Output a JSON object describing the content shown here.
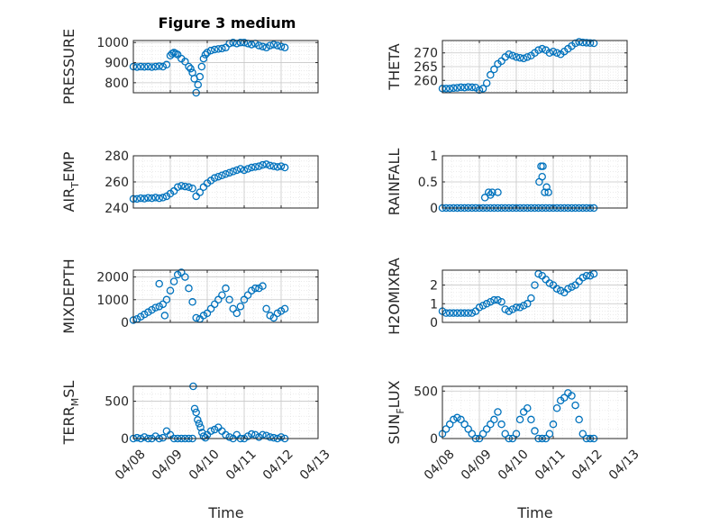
{
  "figure": {
    "title": "Figure 3 medium",
    "xlabel": "Time",
    "x_ticks": [
      "04/08",
      "04/09",
      "04/10",
      "04/11",
      "04/12",
      "04/13"
    ]
  },
  "colors": {
    "marker": "#0072BD",
    "axis": "#262626",
    "grid": "#dfdfdf"
  },
  "chart_data": [
    {
      "type": "scatter",
      "name": "PRESSURE",
      "ylabel_main": "PRESSURE",
      "ylabel_sub": "",
      "xlim": [
        0,
        5
      ],
      "ylim": [
        750,
        1010
      ],
      "yticks": [
        800,
        900,
        1000
      ],
      "grid": true,
      "x": [
        0.0,
        0.1,
        0.2,
        0.3,
        0.4,
        0.5,
        0.6,
        0.7,
        0.8,
        0.9,
        1.0,
        1.05,
        1.1,
        1.15,
        1.2,
        1.3,
        1.4,
        1.5,
        1.55,
        1.6,
        1.65,
        1.7,
        1.75,
        1.8,
        1.85,
        1.9,
        1.95,
        2.0,
        2.1,
        2.2,
        2.3,
        2.4,
        2.5,
        2.6,
        2.7,
        2.8,
        2.9,
        3.0,
        3.1,
        3.2,
        3.3,
        3.4,
        3.5,
        3.6,
        3.7,
        3.8,
        3.9,
        4.0,
        4.1
      ],
      "y": [
        880,
        878,
        880,
        879,
        880,
        878,
        880,
        882,
        880,
        890,
        935,
        945,
        950,
        945,
        940,
        920,
        905,
        880,
        870,
        850,
        820,
        750,
        790,
        830,
        880,
        920,
        940,
        950,
        960,
        965,
        968,
        970,
        975,
        995,
        1000,
        995,
        1000,
        1000,
        995,
        990,
        995,
        985,
        980,
        975,
        985,
        990,
        985,
        980,
        975
      ]
    },
    {
      "type": "scatter",
      "name": "THETA",
      "ylabel_main": "THETA",
      "ylabel_sub": "",
      "xlim": [
        0,
        5
      ],
      "ylim": [
        255.5,
        274.5
      ],
      "yticks": [
        260,
        265,
        270
      ],
      "grid": true,
      "x": [
        0.0,
        0.1,
        0.2,
        0.3,
        0.4,
        0.5,
        0.6,
        0.7,
        0.8,
        0.9,
        1.0,
        1.1,
        1.2,
        1.3,
        1.4,
        1.5,
        1.6,
        1.7,
        1.8,
        1.9,
        2.0,
        2.1,
        2.2,
        2.3,
        2.4,
        2.5,
        2.6,
        2.7,
        2.8,
        2.9,
        3.0,
        3.1,
        3.2,
        3.3,
        3.4,
        3.5,
        3.6,
        3.7,
        3.8,
        3.9,
        4.0,
        4.1
      ],
      "y": [
        257,
        257,
        257,
        257.2,
        257.3,
        257.5,
        257.4,
        257.6,
        257.5,
        257.4,
        256.5,
        257,
        259,
        262,
        264,
        266,
        267,
        268.5,
        269.5,
        269,
        268.5,
        268.2,
        268,
        268.5,
        269,
        270,
        271,
        271.5,
        271,
        270,
        270.5,
        270,
        269.5,
        270.5,
        271.5,
        272.5,
        273.5,
        274,
        273.8,
        273.7,
        273.6,
        273.5
      ]
    },
    {
      "type": "scatter",
      "name": "AIR_TEMP",
      "ylabel_main": "AIR",
      "ylabel_sub": "T",
      "ylabel_tail": "EMP",
      "xlim": [
        0,
        5
      ],
      "ylim": [
        240,
        280
      ],
      "yticks": [
        240,
        260,
        280
      ],
      "grid": true,
      "x": [
        0.0,
        0.1,
        0.2,
        0.3,
        0.4,
        0.5,
        0.6,
        0.7,
        0.8,
        0.9,
        1.0,
        1.1,
        1.2,
        1.3,
        1.4,
        1.5,
        1.6,
        1.7,
        1.8,
        1.9,
        2.0,
        2.1,
        2.2,
        2.3,
        2.4,
        2.5,
        2.6,
        2.7,
        2.8,
        2.9,
        3.0,
        3.1,
        3.2,
        3.3,
        3.4,
        3.5,
        3.6,
        3.7,
        3.8,
        3.9,
        4.0,
        4.1
      ],
      "y": [
        247,
        247,
        247.5,
        247.2,
        247.8,
        247.5,
        248,
        247.5,
        248,
        249,
        251,
        253,
        256,
        257,
        256.5,
        256,
        255,
        249,
        252,
        256,
        259,
        261,
        263,
        264,
        265,
        266,
        267,
        268,
        269,
        270,
        269,
        270,
        271,
        271.5,
        272,
        273,
        273.5,
        272.5,
        272,
        271.5,
        272,
        271
      ]
    },
    {
      "type": "scatter",
      "name": "RAINFALL",
      "ylabel_main": "RAINFALL",
      "ylabel_sub": "",
      "xlim": [
        0,
        5
      ],
      "ylim": [
        0,
        1
      ],
      "yticks": [
        0,
        0.5,
        1
      ],
      "grid": true,
      "x": [
        0.0,
        0.1,
        0.2,
        0.3,
        0.4,
        0.5,
        0.6,
        0.7,
        0.8,
        0.9,
        1.0,
        1.1,
        1.2,
        1.3,
        1.4,
        1.5,
        1.6,
        1.7,
        1.8,
        1.9,
        2.0,
        2.1,
        2.2,
        2.3,
        2.4,
        2.5,
        2.6,
        2.7,
        2.8,
        2.9,
        3.0,
        3.1,
        3.2,
        3.3,
        3.4,
        3.5,
        3.6,
        3.7,
        3.8,
        3.9,
        4.0,
        4.1,
        1.15,
        1.25,
        1.35,
        1.5,
        1.3,
        2.62,
        2.67,
        2.72,
        2.77,
        2.82,
        2.87,
        2.7
      ],
      "y": [
        0,
        0,
        0,
        0,
        0,
        0,
        0,
        0,
        0,
        0,
        0,
        0,
        0,
        0,
        0,
        0,
        0,
        0,
        0,
        0,
        0,
        0,
        0,
        0,
        0,
        0,
        0,
        0,
        0,
        0,
        0,
        0,
        0,
        0,
        0,
        0,
        0,
        0,
        0,
        0,
        0,
        0,
        0.2,
        0.3,
        0.3,
        0.3,
        0.25,
        0.5,
        0.8,
        0.8,
        0.3,
        0.4,
        0.3,
        0.6
      ]
    },
    {
      "type": "scatter",
      "name": "MIXDEPTH",
      "ylabel_main": "MIXDEPTH",
      "ylabel_sub": "",
      "xlim": [
        0,
        5
      ],
      "ylim": [
        0,
        2300
      ],
      "yticks": [
        0,
        1000,
        2000
      ],
      "grid": true,
      "x": [
        0.0,
        0.1,
        0.2,
        0.3,
        0.4,
        0.5,
        0.6,
        0.7,
        0.8,
        0.9,
        1.0,
        1.1,
        1.2,
        1.3,
        1.4,
        1.5,
        1.6,
        1.7,
        1.8,
        1.9,
        2.0,
        2.1,
        2.2,
        2.3,
        2.4,
        2.5,
        2.6,
        2.7,
        2.8,
        2.9,
        3.0,
        3.1,
        3.2,
        3.3,
        3.4,
        3.5,
        3.6,
        3.7,
        3.8,
        3.9,
        4.0,
        4.1,
        0.7,
        0.85
      ],
      "y": [
        100,
        150,
        250,
        350,
        450,
        550,
        650,
        700,
        800,
        1000,
        1400,
        1800,
        2100,
        2200,
        2000,
        1500,
        900,
        200,
        150,
        300,
        400,
        600,
        800,
        1000,
        1200,
        1500,
        1000,
        600,
        400,
        700,
        1000,
        1200,
        1400,
        1500,
        1500,
        1600,
        600,
        300,
        200,
        400,
        500,
        600,
        1700,
        300
      ]
    },
    {
      "type": "scatter",
      "name": "H2OMIXRA",
      "ylabel_main": "H2OMIXRA",
      "ylabel_sub": "",
      "xlim": [
        0,
        5
      ],
      "ylim": [
        0,
        2.8
      ],
      "yticks": [
        0,
        1,
        2
      ],
      "grid": true,
      "x": [
        0.0,
        0.1,
        0.2,
        0.3,
        0.4,
        0.5,
        0.6,
        0.7,
        0.8,
        0.9,
        1.0,
        1.1,
        1.2,
        1.3,
        1.4,
        1.5,
        1.6,
        1.7,
        1.8,
        1.9,
        2.0,
        2.1,
        2.2,
        2.3,
        2.4,
        2.5,
        2.6,
        2.7,
        2.8,
        2.9,
        3.0,
        3.1,
        3.2,
        3.3,
        3.4,
        3.5,
        3.6,
        3.7,
        3.8,
        3.9,
        4.0,
        4.1
      ],
      "y": [
        0.6,
        0.5,
        0.5,
        0.5,
        0.5,
        0.5,
        0.5,
        0.5,
        0.5,
        0.6,
        0.8,
        0.9,
        1.0,
        1.1,
        1.2,
        1.2,
        1.1,
        0.7,
        0.6,
        0.7,
        0.8,
        0.8,
        0.9,
        1.0,
        1.3,
        2.0,
        2.6,
        2.5,
        2.3,
        2.1,
        2.0,
        1.8,
        1.7,
        1.6,
        1.8,
        1.9,
        2.0,
        2.2,
        2.4,
        2.5,
        2.5,
        2.6
      ]
    },
    {
      "type": "scatter",
      "name": "TERR_MSL",
      "ylabel_main": "TERR",
      "ylabel_sub": "M",
      "ylabel_tail": "SL",
      "xlim": [
        0,
        5
      ],
      "ylim": [
        0,
        700
      ],
      "yticks": [
        0,
        500
      ],
      "grid": true,
      "x": [
        0.0,
        0.1,
        0.2,
        0.3,
        0.4,
        0.5,
        0.6,
        0.7,
        0.8,
        0.9,
        1.0,
        1.1,
        1.2,
        1.3,
        1.4,
        1.5,
        1.6,
        1.62,
        1.66,
        1.7,
        1.74,
        1.78,
        1.82,
        1.86,
        1.9,
        1.95,
        2.0,
        2.1,
        2.2,
        2.3,
        2.4,
        2.5,
        2.6,
        2.7,
        2.8,
        2.9,
        3.0,
        3.1,
        3.2,
        3.3,
        3.4,
        3.5,
        3.6,
        3.7,
        3.8,
        3.9,
        4.0,
        4.1
      ],
      "y": [
        0,
        10,
        0,
        20,
        0,
        0,
        30,
        0,
        10,
        100,
        50,
        0,
        0,
        0,
        0,
        0,
        0,
        700,
        400,
        350,
        250,
        200,
        150,
        80,
        30,
        10,
        50,
        100,
        120,
        150,
        100,
        50,
        20,
        0,
        50,
        0,
        0,
        30,
        60,
        50,
        20,
        50,
        40,
        20,
        10,
        0,
        20,
        0
      ]
    },
    {
      "type": "scatter",
      "name": "SUN_FLUX",
      "ylabel_main": "SUN",
      "ylabel_sub": "F",
      "ylabel_tail": "LUX",
      "xlim": [
        0,
        5
      ],
      "ylim": [
        0,
        550
      ],
      "yticks": [
        0,
        500
      ],
      "grid": true,
      "x": [
        0.0,
        0.1,
        0.2,
        0.3,
        0.4,
        0.5,
        0.6,
        0.7,
        0.8,
        0.9,
        1.0,
        1.1,
        1.2,
        1.3,
        1.4,
        1.5,
        1.6,
        1.7,
        1.8,
        1.9,
        2.0,
        2.1,
        2.2,
        2.3,
        2.4,
        2.5,
        2.6,
        2.7,
        2.8,
        2.9,
        3.0,
        3.1,
        3.2,
        3.3,
        3.4,
        3.5,
        3.6,
        3.7,
        3.8,
        3.9,
        4.0,
        4.1
      ],
      "y": [
        50,
        100,
        150,
        200,
        220,
        200,
        150,
        100,
        50,
        0,
        0,
        50,
        100,
        150,
        200,
        280,
        150,
        50,
        0,
        0,
        50,
        200,
        280,
        320,
        200,
        80,
        0,
        0,
        0,
        50,
        150,
        320,
        400,
        430,
        480,
        450,
        350,
        200,
        50,
        0,
        0,
        0
      ]
    }
  ]
}
